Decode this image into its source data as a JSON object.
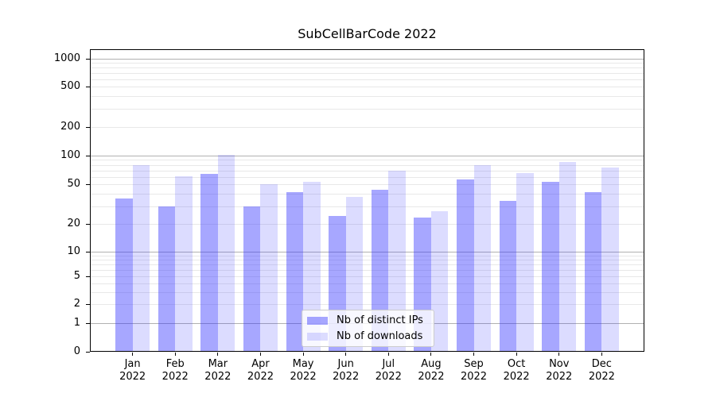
{
  "title": "SubCellBarCode 2022",
  "colors": {
    "bar_dark": "rgba(45,45,255,0.42)",
    "bar_light": "rgba(45,45,255,0.17)",
    "grid_major": "#b1b1b1",
    "grid_minor": "#e8e8e8",
    "spine": "#000000",
    "legend_border": "#cccccc"
  },
  "legend": {
    "items": [
      {
        "label": "Nb of distinct IPs",
        "swatch": "bar_dark"
      },
      {
        "label": "Nb of downloads",
        "swatch": "bar_light"
      }
    ]
  },
  "x_axis": {
    "months": [
      "Jan",
      "Feb",
      "Mar",
      "Apr",
      "May",
      "Jun",
      "Jul",
      "Aug",
      "Sep",
      "Oct",
      "Nov",
      "Dec"
    ],
    "year": "2022"
  },
  "y_axis": {
    "tick_values": [
      0,
      1,
      2,
      5,
      10,
      20,
      50,
      100,
      200,
      500,
      1000
    ]
  },
  "chart_data": {
    "type": "bar",
    "title": "SubCellBarCode 2022",
    "categories": [
      "Jan 2022",
      "Feb 2022",
      "Mar 2022",
      "Apr 2022",
      "May 2022",
      "Jun 2022",
      "Jul 2022",
      "Aug 2022",
      "Sep 2022",
      "Oct 2022",
      "Nov 2022",
      "Dec 2022"
    ],
    "series": [
      {
        "name": "Nb of distinct IPs",
        "values": [
          36,
          30,
          64,
          30,
          42,
          24,
          44,
          23,
          56,
          34,
          53,
          42
        ]
      },
      {
        "name": "Nb of downloads",
        "values": [
          79,
          61,
          102,
          50,
          53,
          37,
          70,
          27,
          80,
          65,
          86,
          75
        ]
      }
    ],
    "xlabel": "",
    "ylabel": "",
    "yscale": "symlog",
    "yticks": [
      0,
      1,
      2,
      5,
      10,
      20,
      50,
      100,
      200,
      500,
      1000
    ],
    "ylim": [
      0,
      1250
    ],
    "grid": "horizontal major and minor gridlines",
    "legend_position": "lower center inside plot"
  }
}
